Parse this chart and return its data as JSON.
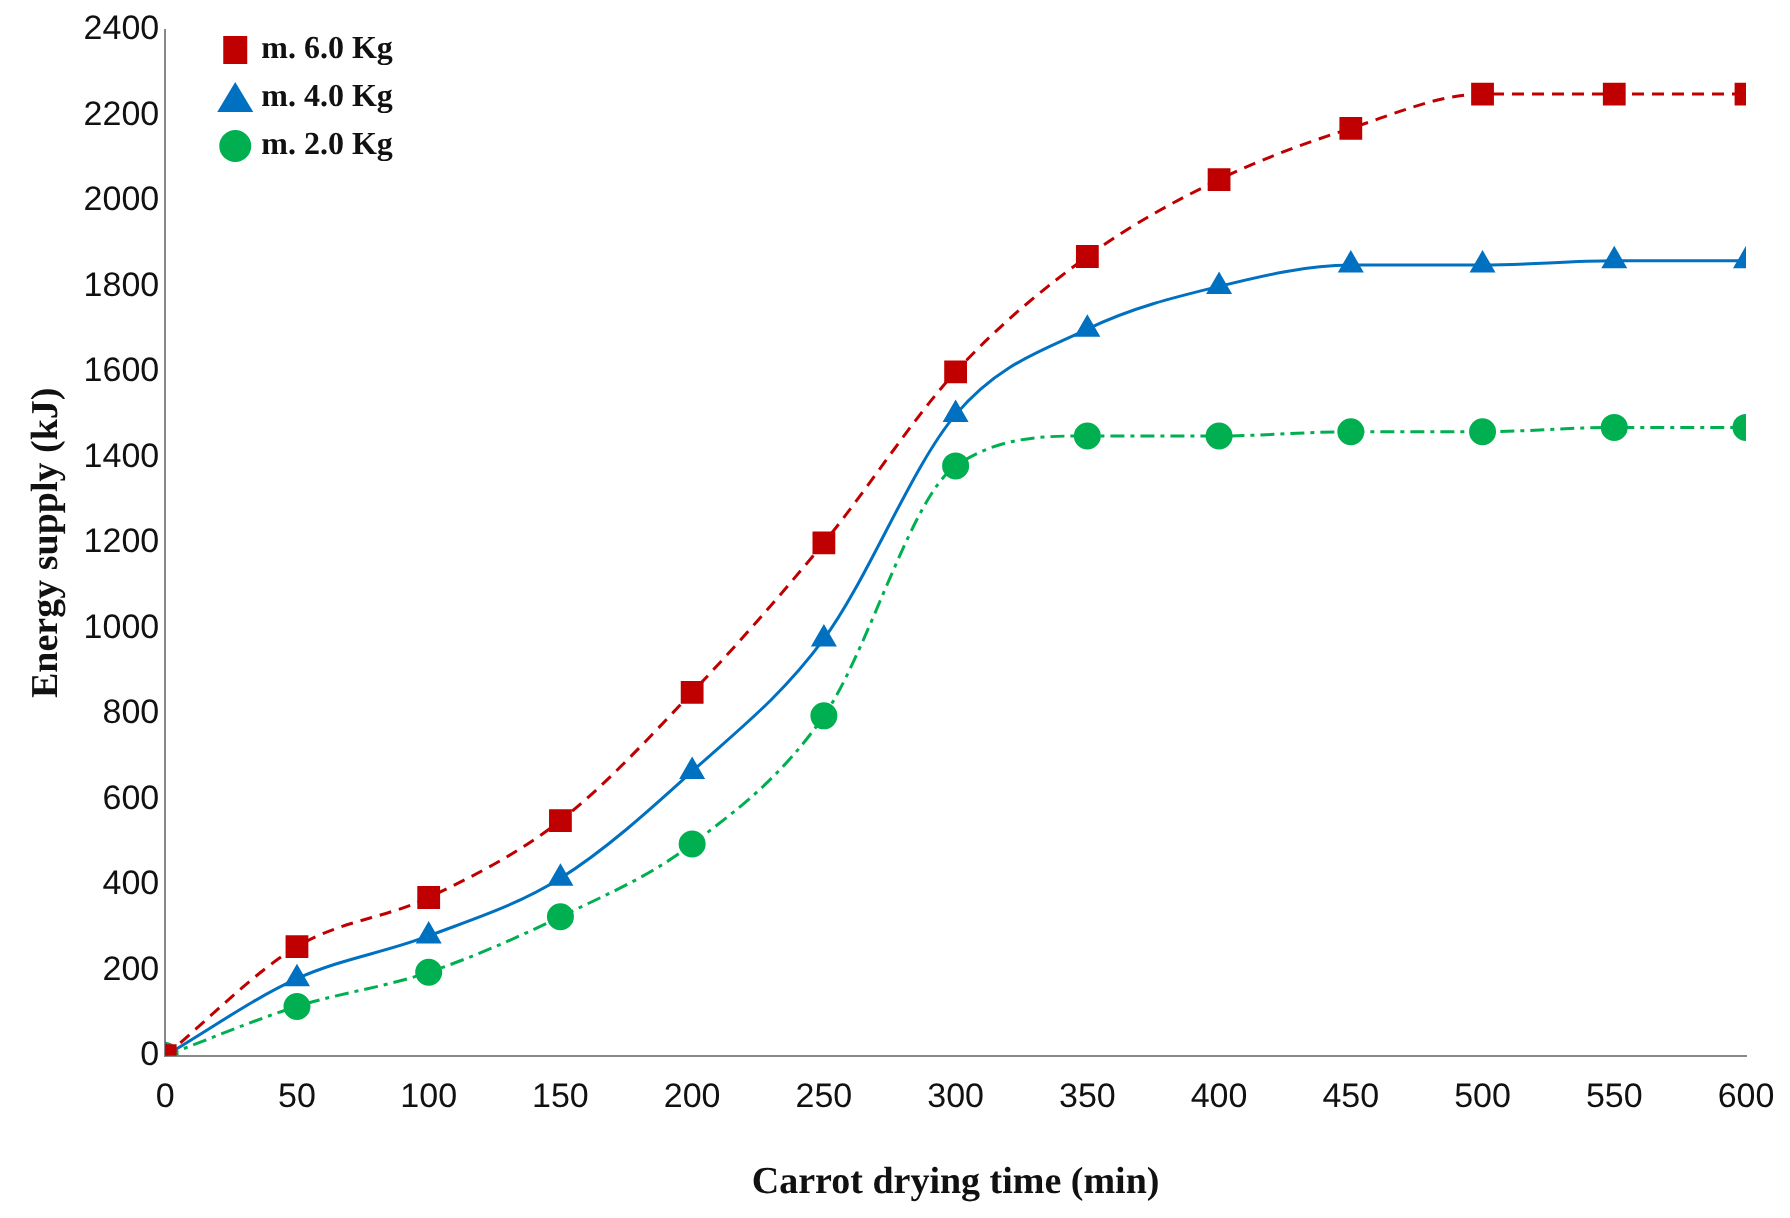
{
  "chart_data": {
    "type": "line",
    "xlabel": "Carrot drying time (min)",
    "ylabel": "Energy supply (kJ)",
    "x": [
      0,
      50,
      100,
      150,
      200,
      250,
      300,
      350,
      400,
      450,
      500,
      550,
      600
    ],
    "series": [
      {
        "name": "m. 6.0 Kg",
        "color": "#c00000",
        "marker": "square",
        "line_style": "dashed",
        "values": [
          0,
          255,
          370,
          550,
          850,
          1200,
          1600,
          1870,
          2050,
          2170,
          2250,
          2250,
          2250
        ]
      },
      {
        "name": "m. 4.0 Kg",
        "color": "#0070c0",
        "marker": "triangle",
        "line_style": "solid",
        "values": [
          0,
          180,
          280,
          415,
          665,
          975,
          1500,
          1700,
          1800,
          1850,
          1850,
          1860,
          1860
        ]
      },
      {
        "name": "m. 2.0 Kg",
        "color": "#00b050",
        "marker": "circle",
        "line_style": "dashdot",
        "values": [
          0,
          115,
          195,
          325,
          495,
          795,
          1380,
          1450,
          1450,
          1460,
          1460,
          1470,
          1470
        ]
      }
    ],
    "xlim": [
      0,
      600
    ],
    "xticks": [
      0,
      50,
      100,
      150,
      200,
      250,
      300,
      350,
      400,
      450,
      500,
      550,
      600
    ],
    "ylim": [
      0,
      2400
    ],
    "yticks": [
      0,
      200,
      400,
      600,
      800,
      1000,
      1200,
      1400,
      1600,
      1800,
      2000,
      2200,
      2400
    ],
    "grid": false,
    "legend": "top left"
  }
}
